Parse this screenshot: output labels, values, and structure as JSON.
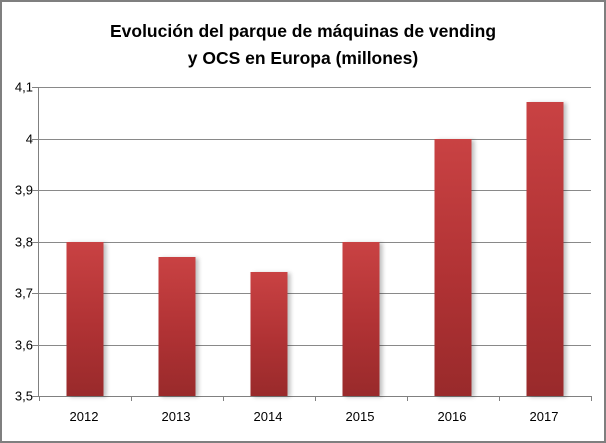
{
  "title": {
    "line1": "Evolución del parque de máquinas de vending",
    "line2": "y OCS en Europa (millones)"
  },
  "chart_data": {
    "type": "bar",
    "title": "Evolución del parque de máquinas de vending y OCS en Europa (millones)",
    "categories": [
      "2012",
      "2013",
      "2014",
      "2015",
      "2016",
      "2017"
    ],
    "values": [
      3.8,
      3.77,
      3.74,
      3.8,
      4.0,
      4.07
    ],
    "xlabel": "",
    "ylabel": "",
    "ylim": [
      3.5,
      4.1
    ],
    "ytick_step": 0.1,
    "ytick_labels_top_to_bottom": [
      "4,1",
      "4",
      "3,9",
      "3,8",
      "3,7",
      "3,6",
      "3,5"
    ],
    "decimal_separator": ",",
    "grid": true,
    "legend": false,
    "colors": {
      "bar_gradient_top": "#c94243",
      "bar_gradient_bottom": "#992a2b",
      "gridline": "#898989",
      "axis": "#808080",
      "frame_border": "#7f7f7f",
      "background": "#ffffff",
      "text": "#000000"
    }
  }
}
